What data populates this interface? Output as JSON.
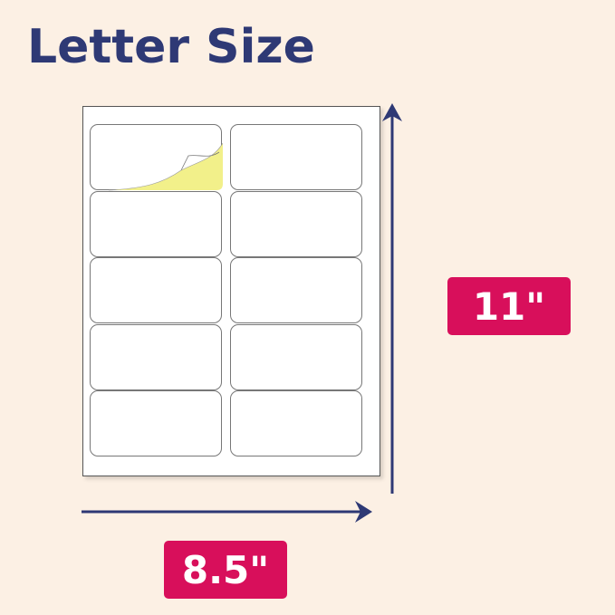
{
  "title": "Letter Size",
  "height_label": "11\"",
  "width_label": "8.5\"",
  "sheet": {
    "columns": 2,
    "rows": 5,
    "peeled_label_color": "#f2f08a"
  },
  "colors": {
    "title": "#2e3975",
    "badge": "#d80f5b",
    "arrow": "#2e3975",
    "background": "#fcf0e4"
  }
}
